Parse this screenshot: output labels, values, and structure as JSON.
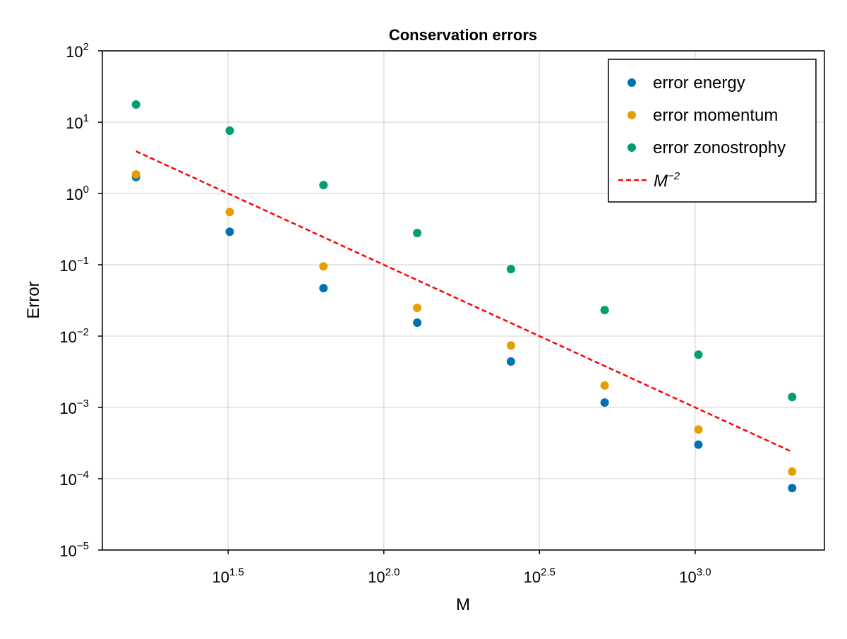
{
  "chart_data": {
    "type": "scatter",
    "title": "Conservation errors",
    "xlabel": "M",
    "ylabel": "Error",
    "xscale": "log10",
    "yscale": "log10",
    "xlim_log10": [
      1.096,
      3.415
    ],
    "ylim_log10": [
      -5,
      2
    ],
    "grid": true,
    "legend_position": "top-right",
    "x_ticks": [
      {
        "base": "10",
        "exp": "1.5",
        "v": 1.5
      },
      {
        "base": "10",
        "exp": "2.0",
        "v": 2.0
      },
      {
        "base": "10",
        "exp": "2.5",
        "v": 2.5
      },
      {
        "base": "10",
        "exp": "3.0",
        "v": 3.0
      }
    ],
    "y_ticks": [
      {
        "base": "10",
        "exp": "2",
        "v": 2
      },
      {
        "base": "10",
        "exp": "1",
        "v": 1
      },
      {
        "base": "10",
        "exp": "0",
        "v": 0
      },
      {
        "base": "10",
        "exp": "−1",
        "v": -1
      },
      {
        "base": "10",
        "exp": "−2",
        "v": -2
      },
      {
        "base": "10",
        "exp": "−3",
        "v": -3
      },
      {
        "base": "10",
        "exp": "−4",
        "v": -4
      },
      {
        "base": "10",
        "exp": "−5",
        "v": -5
      }
    ],
    "x": [
      16,
      32,
      64,
      128,
      256,
      512,
      1024,
      2048
    ],
    "series": [
      {
        "name": "error energy",
        "kind": "scatter",
        "color": "#0072B2",
        "values": [
          1.7,
          0.29,
          0.047,
          0.0154,
          0.0044,
          0.00117,
          0.0003,
          7.4e-05
        ]
      },
      {
        "name": "error momentum",
        "kind": "scatter",
        "color": "#E69F00",
        "values": [
          1.85,
          0.55,
          0.095,
          0.0249,
          0.0074,
          0.00203,
          0.00049,
          0.000126
        ]
      },
      {
        "name": "error zonostrophy",
        "kind": "scatter",
        "color": "#009E73",
        "values": [
          17.7,
          7.6,
          1.31,
          0.279,
          0.087,
          0.0232,
          0.0055,
          0.0014
        ]
      },
      {
        "name": "M",
        "name_exp": "−2",
        "kind": "dashed-line",
        "color": "#FF0000",
        "x": [
          16,
          2048
        ],
        "values": [
          3.906,
          0.000238
        ]
      }
    ]
  }
}
